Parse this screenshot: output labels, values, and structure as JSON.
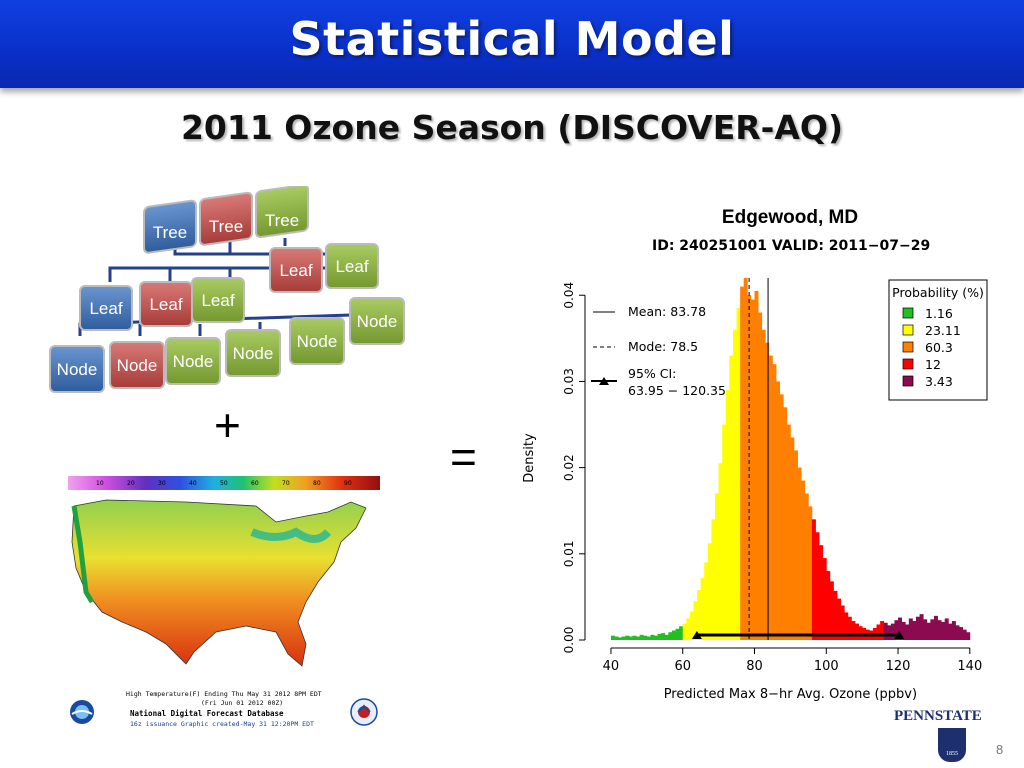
{
  "slide": {
    "title": "Statistical Model",
    "subtitle": "2011 Ozone Season (DISCOVER-AQ)",
    "plus": "+",
    "equals": "=",
    "page_number": "8",
    "logo_text": "PENNSTATE",
    "logo_year": "1855"
  },
  "tree_graphic": {
    "trees": [
      "Tree",
      "Tree",
      "Tree"
    ],
    "leaves": [
      "Leaf",
      "Leaf",
      "Leaf",
      "Leaf",
      "Leaf"
    ],
    "nodes": [
      "Node",
      "Node",
      "Node",
      "Node",
      "Node",
      "Node"
    ],
    "colors": {
      "blue": "#3d6fb0",
      "red": "#c0504d",
      "green": "#8ab33f"
    }
  },
  "map": {
    "scale_ticks": [
      "10",
      "20",
      "30",
      "40",
      "50",
      "60",
      "70",
      "80",
      "90"
    ],
    "caption_line1": "High Temperature(F) Ending Thu May 31 2012  8PM EDT",
    "caption_line2": "(Fri Jun 01 2012 00Z)",
    "caption_line3": "National Digital Forecast Database",
    "caption_line4": "16z issuance      Graphic created-May 31 12:20PM EDT"
  },
  "chart_data": {
    "type": "bar",
    "title": "Edgewood, MD",
    "subtitle": "ID: 240251001   VALID: 2011−07−29",
    "xlabel": "Predicted Max 8−hr Avg. Ozone (ppbv)",
    "ylabel": "Density",
    "xlim": [
      35,
      142
    ],
    "ylim": [
      0,
      0.042
    ],
    "x_ticks": [
      40,
      60,
      80,
      100,
      120,
      140
    ],
    "y_ticks": [
      0.0,
      0.01,
      0.02,
      0.03,
      0.04
    ],
    "y_tick_labels": [
      "0.00",
      "0.01",
      "0.02",
      "0.03",
      "0.04"
    ],
    "bin_width": 1,
    "bins_x": [
      40,
      41,
      42,
      43,
      44,
      45,
      46,
      47,
      48,
      49,
      50,
      51,
      52,
      53,
      54,
      55,
      56,
      57,
      58,
      59,
      60,
      61,
      62,
      63,
      64,
      65,
      66,
      67,
      68,
      69,
      70,
      71,
      72,
      73,
      74,
      75,
      76,
      77,
      78,
      79,
      80,
      81,
      82,
      83,
      84,
      85,
      86,
      87,
      88,
      89,
      90,
      91,
      92,
      93,
      94,
      95,
      96,
      97,
      98,
      99,
      100,
      101,
      102,
      103,
      104,
      105,
      106,
      107,
      108,
      109,
      110,
      111,
      112,
      113,
      114,
      115,
      116,
      117,
      118,
      119,
      120,
      121,
      122,
      123,
      124,
      125,
      126,
      127,
      128,
      129,
      130,
      131,
      132,
      133,
      134,
      135,
      136,
      137,
      138,
      139
    ],
    "density": [
      0.0005,
      0.0004,
      0.0003,
      0.0004,
      0.0005,
      0.0004,
      0.0005,
      0.0004,
      0.0006,
      0.0005,
      0.0004,
      0.0006,
      0.0005,
      0.0007,
      0.0008,
      0.0006,
      0.0009,
      0.0011,
      0.0013,
      0.0016,
      0.0019,
      0.0025,
      0.0033,
      0.0045,
      0.0058,
      0.0072,
      0.009,
      0.0112,
      0.014,
      0.017,
      0.0205,
      0.025,
      0.029,
      0.033,
      0.036,
      0.0385,
      0.041,
      0.042,
      0.04,
      0.0395,
      0.0405,
      0.038,
      0.036,
      0.0345,
      0.033,
      0.032,
      0.03,
      0.0285,
      0.027,
      0.025,
      0.0235,
      0.022,
      0.02,
      0.0185,
      0.017,
      0.0155,
      0.014,
      0.0125,
      0.011,
      0.0095,
      0.008,
      0.0068,
      0.0057,
      0.0048,
      0.004,
      0.0032,
      0.0027,
      0.0022,
      0.0019,
      0.0016,
      0.0014,
      0.0012,
      0.0011,
      0.0014,
      0.0018,
      0.0022,
      0.002,
      0.0017,
      0.0019,
      0.0023,
      0.0026,
      0.0021,
      0.0018,
      0.0025,
      0.0022,
      0.0027,
      0.003,
      0.0024,
      0.002,
      0.0024,
      0.0028,
      0.0023,
      0.0021,
      0.0025,
      0.0019,
      0.0022,
      0.0017,
      0.0015,
      0.0012,
      0.0009
    ],
    "category_breaks": [
      60,
      76,
      96,
      116
    ],
    "category_colors": [
      "#20c020",
      "#ffff00",
      "#ff8000",
      "#ff0000",
      "#8b0a50"
    ],
    "mean": 83.78,
    "mode": 78.5,
    "ci": [
      63.95,
      120.35
    ],
    "legend": {
      "title": "Probability (%)",
      "position": "top-right",
      "items": [
        {
          "label": "1.16",
          "color": "#20c020"
        },
        {
          "label": "23.11",
          "color": "#ffff00"
        },
        {
          "label": "60.3",
          "color": "#ff8000"
        },
        {
          "label": "12",
          "color": "#ff0000"
        },
        {
          "label": "3.43",
          "color": "#8b0a50"
        }
      ]
    },
    "stats": {
      "mean_label": "Mean: 83.78",
      "mode_label": "Mode: 78.5",
      "ci_label_1": "95% CI:",
      "ci_label_2": "63.95 − 120.35"
    }
  }
}
